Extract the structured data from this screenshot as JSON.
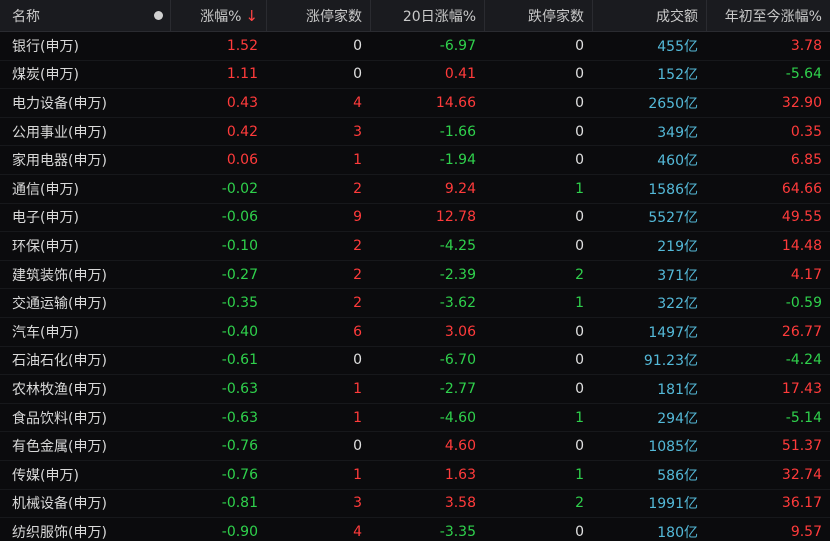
{
  "header": {
    "name": "名称",
    "change_pct": "涨幅%",
    "sort_arrow": "↓",
    "limit_up_count": "涨停家数",
    "change_20d": "20日涨幅%",
    "limit_down_count": "跌停家数",
    "volume": "成交额",
    "ytd_change": "年初至今涨幅%"
  },
  "colors": {
    "up": "#ff3b3b",
    "down": "#2fd14c",
    "volume": "#54b9d8",
    "background": "#0b0b0d",
    "header_bg": "#1a1b1f"
  },
  "rows": [
    {
      "name": "银行(申万)",
      "chg": "1.52",
      "limit_up": "0",
      "d20": "-6.97",
      "limit_down": "0",
      "vol": "455亿",
      "ytd": "3.78"
    },
    {
      "name": "煤炭(申万)",
      "chg": "1.11",
      "limit_up": "0",
      "d20": "0.41",
      "limit_down": "0",
      "vol": "152亿",
      "ytd": "-5.64"
    },
    {
      "name": "电力设备(申万)",
      "chg": "0.43",
      "limit_up": "4",
      "d20": "14.66",
      "limit_down": "0",
      "vol": "2650亿",
      "ytd": "32.90"
    },
    {
      "name": "公用事业(申万)",
      "chg": "0.42",
      "limit_up": "3",
      "d20": "-1.66",
      "limit_down": "0",
      "vol": "349亿",
      "ytd": "0.35"
    },
    {
      "name": "家用电器(申万)",
      "chg": "0.06",
      "limit_up": "1",
      "d20": "-1.94",
      "limit_down": "0",
      "vol": "460亿",
      "ytd": "6.85"
    },
    {
      "name": "通信(申万)",
      "chg": "-0.02",
      "limit_up": "2",
      "d20": "9.24",
      "limit_down": "1",
      "vol": "1586亿",
      "ytd": "64.66"
    },
    {
      "name": "电子(申万)",
      "chg": "-0.06",
      "limit_up": "9",
      "d20": "12.78",
      "limit_down": "0",
      "vol": "5527亿",
      "ytd": "49.55"
    },
    {
      "name": "环保(申万)",
      "chg": "-0.10",
      "limit_up": "2",
      "d20": "-4.25",
      "limit_down": "0",
      "vol": "219亿",
      "ytd": "14.48"
    },
    {
      "name": "建筑装饰(申万)",
      "chg": "-0.27",
      "limit_up": "2",
      "d20": "-2.39",
      "limit_down": "2",
      "vol": "371亿",
      "ytd": "4.17"
    },
    {
      "name": "交通运输(申万)",
      "chg": "-0.35",
      "limit_up": "2",
      "d20": "-3.62",
      "limit_down": "1",
      "vol": "322亿",
      "ytd": "-0.59"
    },
    {
      "name": "汽车(申万)",
      "chg": "-0.40",
      "limit_up": "6",
      "d20": "3.06",
      "limit_down": "0",
      "vol": "1497亿",
      "ytd": "26.77"
    },
    {
      "name": "石油石化(申万)",
      "chg": "-0.61",
      "limit_up": "0",
      "d20": "-6.70",
      "limit_down": "0",
      "vol": "91.23亿",
      "ytd": "-4.24"
    },
    {
      "name": "农林牧渔(申万)",
      "chg": "-0.63",
      "limit_up": "1",
      "d20": "-2.77",
      "limit_down": "0",
      "vol": "181亿",
      "ytd": "17.43"
    },
    {
      "name": "食品饮料(申万)",
      "chg": "-0.63",
      "limit_up": "1",
      "d20": "-4.60",
      "limit_down": "1",
      "vol": "294亿",
      "ytd": "-5.14"
    },
    {
      "name": "有色金属(申万)",
      "chg": "-0.76",
      "limit_up": "0",
      "d20": "4.60",
      "limit_down": "0",
      "vol": "1085亿",
      "ytd": "51.37"
    },
    {
      "name": "传媒(申万)",
      "chg": "-0.76",
      "limit_up": "1",
      "d20": "1.63",
      "limit_down": "1",
      "vol": "586亿",
      "ytd": "32.74"
    },
    {
      "name": "机械设备(申万)",
      "chg": "-0.81",
      "limit_up": "3",
      "d20": "3.58",
      "limit_down": "2",
      "vol": "1991亿",
      "ytd": "36.17"
    },
    {
      "name": "纺织服饰(申万)",
      "chg": "-0.90",
      "limit_up": "4",
      "d20": "-3.35",
      "limit_down": "0",
      "vol": "180亿",
      "ytd": "9.57"
    }
  ]
}
